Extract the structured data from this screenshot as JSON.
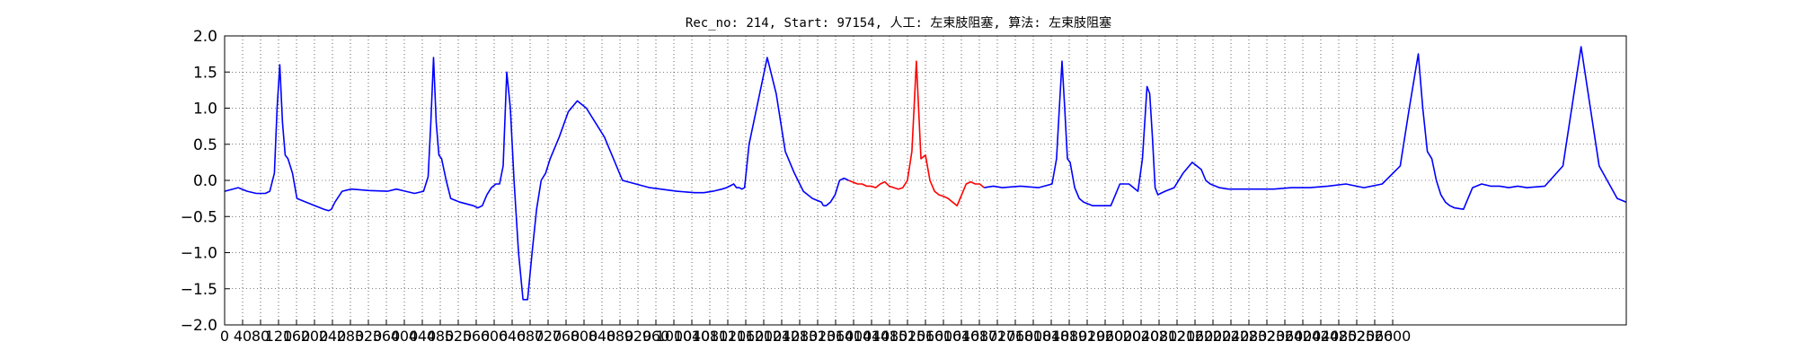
{
  "chart_data": {
    "type": "line",
    "title": "Rec_no: 214, Start: 97154, 人工: 左束肢阻塞, 算法: 左束肢阻塞",
    "xlabel": "",
    "ylabel": "",
    "xlim": [
      0,
      1550
    ],
    "ylim": [
      -2.0,
      2.0
    ],
    "grid": true,
    "y_ticks": [
      "2.0",
      "1.5",
      "1.0",
      "0.5",
      "0.0",
      "−0.5",
      "−1.0",
      "−1.5",
      "−2.0"
    ],
    "x_ticks": [
      "0",
      "40",
      "80",
      "120",
      "160",
      "200",
      "240",
      "280",
      "320",
      "360",
      "400",
      "440",
      "480",
      "520",
      "560",
      "600",
      "640",
      "680",
      "720",
      "760",
      "800",
      "840",
      "880",
      "920",
      "960",
      "1000",
      "1040",
      "1080",
      "1120",
      "1160",
      "1200",
      "1240",
      "1280",
      "1320",
      "1360",
      "1400",
      "1440",
      "1480",
      "1520",
      "1560",
      "1600",
      "1640",
      "1680",
      "1720",
      "1760",
      "1800",
      "1840",
      "1880",
      "1920",
      "1960",
      "2000",
      "2040",
      "2080",
      "2120",
      "2160",
      "2200",
      "2240",
      "2280",
      "2320",
      "2360",
      "2400",
      "2440",
      "2480",
      "2520",
      "2560",
      "2600"
    ],
    "series": [
      {
        "color": "#0000ff",
        "x": [
          0,
          15,
          25,
          35,
          45,
          50,
          55,
          58,
          61,
          64,
          67,
          70,
          75,
          80,
          90,
          100,
          110,
          115,
          118,
          122,
          130,
          140,
          160,
          180,
          190,
          200,
          210,
          220,
          225,
          228,
          231,
          234,
          237,
          240,
          245,
          250,
          260,
          275,
          280,
          285,
          290,
          295,
          300,
          304,
          308,
          312,
          316,
          320,
          325,
          330,
          335,
          340,
          345,
          350,
          355,
          360,
          370,
          380,
          390,
          400,
          420,
          440,
          470,
          500,
          520,
          530,
          540,
          550,
          555,
          560,
          563,
          566,
          569,
          572,
          575,
          580,
          590,
          600,
          610,
          620,
          630,
          640,
          650,
          660,
          662
        ],
        "y": [
          -0.15,
          -0.1,
          -0.15,
          -0.18,
          -0.18,
          -0.15,
          0.1,
          1.0,
          1.6,
          0.8,
          0.35,
          0.3,
          0.1,
          -0.25,
          -0.3,
          -0.35,
          -0.4,
          -0.42,
          -0.4,
          -0.3,
          -0.15,
          -0.12,
          -0.14,
          -0.15,
          -0.12,
          -0.15,
          -0.18,
          -0.15,
          0.05,
          0.8,
          1.7,
          0.8,
          0.35,
          0.3,
          0.0,
          -0.25,
          -0.3,
          -0.35,
          -0.38,
          -0.35,
          -0.2,
          -0.1,
          -0.05,
          -0.05,
          0.2,
          1.5,
          1.0,
          0.0,
          -1.0,
          -1.65,
          -1.65,
          -1.0,
          -0.4,
          0.0,
          0.1,
          0.3,
          0.6,
          0.95,
          1.1,
          1.0,
          0.6,
          0.0,
          -0.1,
          -0.15,
          -0.17,
          -0.17,
          -0.15,
          -0.12,
          -0.1,
          -0.07,
          -0.05,
          -0.1,
          -0.1,
          -0.12,
          -0.1,
          0.5,
          1.1,
          1.7,
          1.2,
          0.4,
          0.1,
          -0.15,
          -0.25,
          -0.3,
          -0.35
        ]
      },
      {
        "color": "#0000ff",
        "x": [
          662,
          665,
          670,
          675,
          680,
          685,
          690
        ],
        "y": [
          -0.35,
          -0.35,
          -0.3,
          -0.2,
          0.0,
          0.03,
          0.0
        ]
      },
      {
        "color": "#ff0000",
        "x": [
          690,
          700,
          705,
          710,
          715,
          720,
          725,
          730,
          735,
          740,
          745,
          750,
          755,
          760,
          765,
          770,
          775,
          780,
          785,
          790,
          795,
          800,
          805,
          810,
          815,
          820,
          825,
          830,
          835,
          840
        ],
        "y": [
          0.0,
          -0.05,
          -0.05,
          -0.08,
          -0.08,
          -0.1,
          -0.05,
          -0.02,
          -0.08,
          -0.1,
          -0.12,
          -0.1,
          0.0,
          0.4,
          1.65,
          0.3,
          0.35,
          0.0,
          -0.15,
          -0.2,
          -0.22,
          -0.25,
          -0.3,
          -0.35,
          -0.2,
          -0.05,
          -0.02,
          -0.05,
          -0.05,
          -0.1
        ]
      },
      {
        "color": "#0000ff",
        "x": [
          840,
          850,
          860,
          880,
          900,
          915,
          920,
          923,
          926,
          929,
          932,
          935,
          940,
          945,
          950,
          960,
          980,
          985,
          990,
          995,
          1000,
          1010,
          1015,
          1020,
          1023,
          1026,
          1029,
          1032,
          1035,
          1040,
          1050,
          1060,
          1070,
          1080,
          1085,
          1090,
          1100,
          1110,
          1120,
          1130,
          1140,
          1160,
          1180,
          1200,
          1220,
          1240,
          1260,
          1280,
          1300,
          1310,
          1320,
          1325,
          1330,
          1335,
          1340,
          1345,
          1350,
          1355,
          1360,
          1370,
          1380,
          1390,
          1400,
          1410,
          1420,
          1430,
          1440,
          1460,
          1480,
          1500,
          1520,
          1540,
          1550
        ],
        "y": [
          -0.1,
          -0.08,
          -0.1,
          -0.08,
          -0.1,
          -0.05,
          0.3,
          1.0,
          1.65,
          1.0,
          0.3,
          0.25,
          -0.1,
          -0.25,
          -0.3,
          -0.35,
          -0.35,
          -0.2,
          -0.05,
          -0.05,
          -0.05,
          -0.15,
          0.3,
          1.3,
          1.2,
          0.6,
          -0.1,
          -0.2,
          -0.18,
          -0.15,
          -0.1,
          0.1,
          0.25,
          0.15,
          0.0,
          -0.05,
          -0.1,
          -0.12,
          -0.12,
          -0.12,
          -0.12,
          -0.12,
          -0.1,
          -0.1,
          -0.08,
          -0.05,
          -0.1,
          -0.05,
          0.2,
          1.0,
          1.75,
          1.0,
          0.4,
          0.3,
          0.0,
          -0.2,
          -0.3,
          -0.35,
          -0.38,
          -0.4,
          -0.1,
          -0.05,
          -0.08,
          -0.08,
          -0.1,
          -0.08,
          -0.1,
          -0.08,
          0.2,
          1.85,
          0.2,
          -0.25,
          -0.3
        ]
      }
    ]
  }
}
